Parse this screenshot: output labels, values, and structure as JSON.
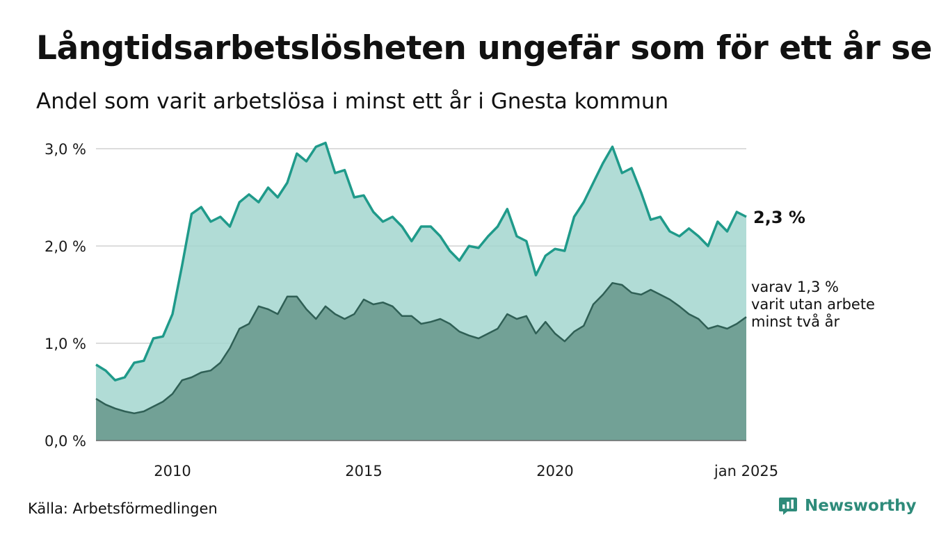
{
  "title": "Långtidsarbetslösheten ungefär som för ett år sen",
  "subtitle": "Andel som varit arbetslösa i minst ett år i Gnesta kommun",
  "source": "Källa: Arbetsförmedlingen",
  "brand": {
    "name": "Newsworthy",
    "icon": "newsworthy-logo-icon",
    "color": "#2e8b7a"
  },
  "chart_data": {
    "type": "area",
    "x_start": "2008-01",
    "x_end": "2025-01",
    "x_ticks": [
      {
        "x": "2010-01",
        "label": "2010"
      },
      {
        "x": "2015-01",
        "label": "2015"
      },
      {
        "x": "2020-01",
        "label": "2020"
      },
      {
        "x": "2025-01",
        "label": "jan 2025"
      }
    ],
    "y_ticks": [
      {
        "value": 0,
        "label": "0,0 %"
      },
      {
        "value": 1,
        "label": "1,0 %"
      },
      {
        "value": 2,
        "label": "2,0 %"
      },
      {
        "value": 3,
        "label": "3,0 %"
      }
    ],
    "ylim": [
      0,
      3.1
    ],
    "grid": true,
    "colors": {
      "one_year_line": "#1f9a8a",
      "one_year_fill": "#a3d6cf",
      "two_year_line": "#2f5f55",
      "two_year_fill": "#72a196",
      "grid": "#dcdcdc"
    },
    "annotations": [
      {
        "series": 0,
        "label": "2,3 %"
      },
      {
        "series": 1,
        "lines": [
          "varav 1,3 %",
          "varit utan arbete",
          "minst två år"
        ]
      }
    ],
    "series": [
      {
        "points": [
          [
            "2008-01",
            0.78
          ],
          [
            "2008-04",
            0.72
          ],
          [
            "2008-07",
            0.62
          ],
          [
            "2008-10",
            0.65
          ],
          [
            "2009-01",
            0.8
          ],
          [
            "2009-04",
            0.82
          ],
          [
            "2009-07",
            1.05
          ],
          [
            "2009-10",
            1.07
          ],
          [
            "2010-01",
            1.3
          ],
          [
            "2010-04",
            1.8
          ],
          [
            "2010-07",
            2.33
          ],
          [
            "2010-10",
            2.4
          ],
          [
            "2011-01",
            2.25
          ],
          [
            "2011-04",
            2.3
          ],
          [
            "2011-07",
            2.2
          ],
          [
            "2011-10",
            2.45
          ],
          [
            "2012-01",
            2.53
          ],
          [
            "2012-04",
            2.45
          ],
          [
            "2012-07",
            2.6
          ],
          [
            "2012-10",
            2.5
          ],
          [
            "2013-01",
            2.65
          ],
          [
            "2013-04",
            2.95
          ],
          [
            "2013-07",
            2.87
          ],
          [
            "2013-10",
            3.02
          ],
          [
            "2014-01",
            3.06
          ],
          [
            "2014-04",
            2.75
          ],
          [
            "2014-07",
            2.78
          ],
          [
            "2014-10",
            2.5
          ],
          [
            "2015-01",
            2.52
          ],
          [
            "2015-04",
            2.35
          ],
          [
            "2015-07",
            2.25
          ],
          [
            "2015-10",
            2.3
          ],
          [
            "2016-01",
            2.2
          ],
          [
            "2016-04",
            2.05
          ],
          [
            "2016-07",
            2.2
          ],
          [
            "2016-10",
            2.2
          ],
          [
            "2017-01",
            2.1
          ],
          [
            "2017-04",
            1.95
          ],
          [
            "2017-07",
            1.85
          ],
          [
            "2017-10",
            2.0
          ],
          [
            "2018-01",
            1.98
          ],
          [
            "2018-04",
            2.1
          ],
          [
            "2018-07",
            2.2
          ],
          [
            "2018-10",
            2.38
          ],
          [
            "2019-01",
            2.1
          ],
          [
            "2019-04",
            2.05
          ],
          [
            "2019-07",
            1.7
          ],
          [
            "2019-10",
            1.9
          ],
          [
            "2020-01",
            1.97
          ],
          [
            "2020-04",
            1.95
          ],
          [
            "2020-07",
            2.3
          ],
          [
            "2020-10",
            2.45
          ],
          [
            "2021-01",
            2.65
          ],
          [
            "2021-04",
            2.85
          ],
          [
            "2021-07",
            3.02
          ],
          [
            "2021-10",
            2.75
          ],
          [
            "2022-01",
            2.8
          ],
          [
            "2022-04",
            2.55
          ],
          [
            "2022-07",
            2.27
          ],
          [
            "2022-10",
            2.3
          ],
          [
            "2023-01",
            2.15
          ],
          [
            "2023-04",
            2.1
          ],
          [
            "2023-07",
            2.18
          ],
          [
            "2023-10",
            2.1
          ],
          [
            "2024-01",
            2.0
          ],
          [
            "2024-04",
            2.25
          ],
          [
            "2024-07",
            2.15
          ],
          [
            "2024-10",
            2.35
          ],
          [
            "2025-01",
            2.3
          ]
        ]
      },
      {
        "points": [
          [
            "2008-01",
            0.43
          ],
          [
            "2008-04",
            0.37
          ],
          [
            "2008-07",
            0.33
          ],
          [
            "2008-10",
            0.3
          ],
          [
            "2009-01",
            0.28
          ],
          [
            "2009-04",
            0.3
          ],
          [
            "2009-07",
            0.35
          ],
          [
            "2009-10",
            0.4
          ],
          [
            "2010-01",
            0.48
          ],
          [
            "2010-04",
            0.62
          ],
          [
            "2010-07",
            0.65
          ],
          [
            "2010-10",
            0.7
          ],
          [
            "2011-01",
            0.72
          ],
          [
            "2011-04",
            0.8
          ],
          [
            "2011-07",
            0.95
          ],
          [
            "2011-10",
            1.15
          ],
          [
            "2012-01",
            1.2
          ],
          [
            "2012-04",
            1.38
          ],
          [
            "2012-07",
            1.35
          ],
          [
            "2012-10",
            1.3
          ],
          [
            "2013-01",
            1.48
          ],
          [
            "2013-04",
            1.48
          ],
          [
            "2013-07",
            1.35
          ],
          [
            "2013-10",
            1.25
          ],
          [
            "2014-01",
            1.38
          ],
          [
            "2014-04",
            1.3
          ],
          [
            "2014-07",
            1.25
          ],
          [
            "2014-10",
            1.3
          ],
          [
            "2015-01",
            1.45
          ],
          [
            "2015-04",
            1.4
          ],
          [
            "2015-07",
            1.42
          ],
          [
            "2015-10",
            1.38
          ],
          [
            "2016-01",
            1.28
          ],
          [
            "2016-04",
            1.28
          ],
          [
            "2016-07",
            1.2
          ],
          [
            "2016-10",
            1.22
          ],
          [
            "2017-01",
            1.25
          ],
          [
            "2017-04",
            1.2
          ],
          [
            "2017-07",
            1.12
          ],
          [
            "2017-10",
            1.08
          ],
          [
            "2018-01",
            1.05
          ],
          [
            "2018-04",
            1.1
          ],
          [
            "2018-07",
            1.15
          ],
          [
            "2018-10",
            1.3
          ],
          [
            "2019-01",
            1.25
          ],
          [
            "2019-04",
            1.28
          ],
          [
            "2019-07",
            1.1
          ],
          [
            "2019-10",
            1.22
          ],
          [
            "2020-01",
            1.1
          ],
          [
            "2020-04",
            1.02
          ],
          [
            "2020-07",
            1.12
          ],
          [
            "2020-10",
            1.18
          ],
          [
            "2021-01",
            1.4
          ],
          [
            "2021-04",
            1.5
          ],
          [
            "2021-07",
            1.62
          ],
          [
            "2021-10",
            1.6
          ],
          [
            "2022-01",
            1.52
          ],
          [
            "2022-04",
            1.5
          ],
          [
            "2022-07",
            1.55
          ],
          [
            "2022-10",
            1.5
          ],
          [
            "2023-01",
            1.45
          ],
          [
            "2023-04",
            1.38
          ],
          [
            "2023-07",
            1.3
          ],
          [
            "2023-10",
            1.25
          ],
          [
            "2024-01",
            1.15
          ],
          [
            "2024-04",
            1.18
          ],
          [
            "2024-07",
            1.15
          ],
          [
            "2024-10",
            1.2
          ],
          [
            "2025-01",
            1.27
          ]
        ]
      }
    ]
  }
}
